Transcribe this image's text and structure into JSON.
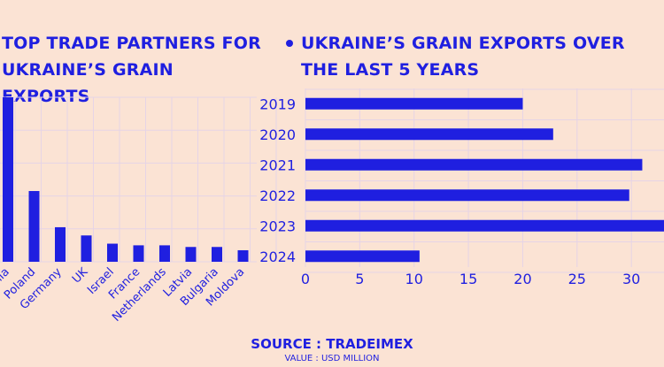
{
  "left_title_lines": [
    "TOP TRADE PARTNERS FOR",
    "UKRAINE’S GRAIN EXPORTS"
  ],
  "right_title_lines": [
    "UKRAINE’S GRAIN EXPORTS OVER",
    "THE LAST 5 YEARS"
  ],
  "footer": {
    "source": "SOURCE : TRADEIMEX",
    "unit": "VALUE : USD MILLION"
  },
  "colors": {
    "background": "#fbe3d4",
    "accent": "#1f1fe0",
    "grid": "#e6d4e6"
  },
  "chart_data": [
    {
      "type": "bar",
      "orientation": "vertical",
      "categories": [
        "nia",
        "Poland",
        "Germany",
        "UK",
        "Israel",
        "France",
        "Netherlands",
        "Latvia",
        "Bulgaria",
        "Moldova"
      ],
      "values": [
        100,
        43,
        21,
        16,
        11,
        10,
        10,
        9,
        9,
        7
      ],
      "ylim": [
        0,
        100
      ],
      "grid": true,
      "y_tick_labels_visible": false
    },
    {
      "type": "bar",
      "orientation": "horizontal",
      "categories": [
        "2019",
        "2020",
        "2021",
        "2022",
        "2023",
        "2024"
      ],
      "values": [
        20,
        22.8,
        31,
        29.8,
        33,
        10.5
      ],
      "xlim": [
        0,
        33
      ],
      "xticks": [
        0,
        5,
        10,
        15,
        20,
        25,
        30
      ],
      "grid": true
    }
  ]
}
